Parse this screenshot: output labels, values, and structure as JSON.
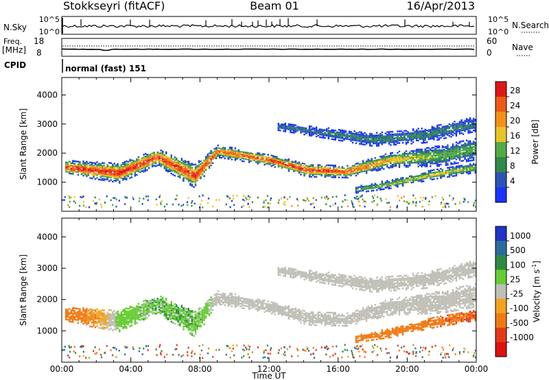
{
  "header": {
    "station": "Stokkseyri (fitACF)",
    "beam": "Beam 01",
    "date": "16/Apr/2013"
  },
  "status_panels": {
    "nsky_label": "N.Sky",
    "nsky_ticks": [
      "10^5",
      "10^0"
    ],
    "nsearch_label": "N.Search",
    "freq_label": "Freq.",
    "freq_unit": "[MHz]",
    "freq_ticks": [
      "18",
      "8"
    ],
    "nave_label": "Nave",
    "nave_ticks": [
      "60",
      "0"
    ],
    "cpid_label": "CPID",
    "cpid_value": "normal (fast) 151"
  },
  "colors": {
    "power": [
      "#1a33ff",
      "#2a55b5",
      "#2f8a4a",
      "#55aa44",
      "#e8c428",
      "#f3901a",
      "#ef5a14",
      "#e01616"
    ],
    "velocity": [
      "#2233c8",
      "#2b6ca0",
      "#2d8a42",
      "#66cc33",
      "#bfbfb6",
      "#f3a21e",
      "#f07a12",
      "#e53818",
      "#dd1111"
    ]
  },
  "chart_data": [
    {
      "type": "heatmap",
      "name": "power",
      "xlabel": "",
      "ylabel": "Slant Range [km]",
      "x_ticks": [
        "00:00",
        "04:00",
        "08:00",
        "12:00",
        "16:00",
        "20:00",
        "00:00"
      ],
      "xlim_hours": [
        0,
        24
      ],
      "ylim": [
        0,
        4600
      ],
      "y_ticks": [
        1000,
        2000,
        3000,
        4000
      ],
      "colorbar": {
        "label": "Power [dB]",
        "ticks": [
          "28",
          "24",
          "20",
          "16",
          "12",
          "8",
          "4"
        ],
        "range": [
          0,
          30
        ]
      },
      "bands": [
        {
          "x": [
            0.2,
            3.3,
            5.5,
            7.7,
            9.0,
            12.0,
            14.2,
            16.5,
            19.0,
            22.0,
            24.0
          ],
          "center": [
            1500,
            1300,
            1850,
            1200,
            2050,
            1750,
            1400,
            1350,
            1750,
            1900,
            2150
          ],
          "halfwidth": [
            150,
            210,
            180,
            260,
            130,
            120,
            140,
            130,
            160,
            220,
            240
          ],
          "peak": [
            27,
            28,
            26,
            27,
            24,
            26,
            27,
            25,
            19,
            13,
            12
          ]
        },
        {
          "x": [
            17.0,
            19.0,
            21.5,
            24.0
          ],
          "center": [
            730,
            920,
            1250,
            1500
          ],
          "halfwidth": [
            70,
            90,
            100,
            110
          ],
          "peak": [
            12,
            14,
            18,
            14
          ]
        },
        {
          "x": [
            12.5,
            15.0,
            18.0,
            21.0,
            24.0
          ],
          "center": [
            2900,
            2700,
            2450,
            2600,
            3000
          ],
          "halfwidth": [
            80,
            110,
            140,
            160,
            160
          ],
          "peak": [
            7,
            8,
            9,
            9,
            8
          ]
        }
      ]
    },
    {
      "type": "heatmap",
      "name": "velocity",
      "xlabel": "Time UT",
      "ylabel": "Slant Range [km]",
      "x_ticks": [
        "00:00",
        "04:00",
        "08:00",
        "12:00",
        "16:00",
        "20:00",
        "00:00"
      ],
      "xlim_hours": [
        0,
        24
      ],
      "ylim": [
        0,
        4600
      ],
      "y_ticks": [
        1000,
        2000,
        3000,
        4000
      ],
      "colorbar": {
        "label": "Velocity [m s^-1]",
        "ticks": [
          "1000",
          "500",
          "100",
          "25",
          "-25",
          "-100",
          "-500",
          "-1000"
        ]
      },
      "bands": [
        {
          "x": [
            0.2,
            3.3,
            5.5,
            7.7,
            9.0,
            12.0,
            14.2,
            16.5,
            19.0,
            22.0,
            24.0
          ],
          "center": [
            1500,
            1300,
            1850,
            1200,
            2050,
            1750,
            1400,
            1350,
            1750,
            1900,
            2150
          ],
          "halfwidth": [
            150,
            210,
            180,
            260,
            130,
            120,
            140,
            130,
            160,
            220,
            240
          ],
          "velocity": [
            -250,
            40,
            60,
            70,
            0,
            0,
            0,
            0,
            0,
            0,
            0
          ]
        },
        {
          "x": [
            17.0,
            19.0,
            21.5,
            24.0
          ],
          "center": [
            730,
            920,
            1250,
            1500
          ],
          "halfwidth": [
            70,
            90,
            100,
            110
          ],
          "velocity": [
            -350,
            -400,
            -450,
            -500
          ]
        },
        {
          "x": [
            12.5,
            15.0,
            18.0,
            21.0,
            24.0
          ],
          "center": [
            2900,
            2700,
            2450,
            2600,
            3000
          ],
          "halfwidth": [
            80,
            110,
            140,
            160,
            160
          ],
          "velocity": [
            0,
            0,
            0,
            0,
            0
          ]
        }
      ]
    }
  ]
}
